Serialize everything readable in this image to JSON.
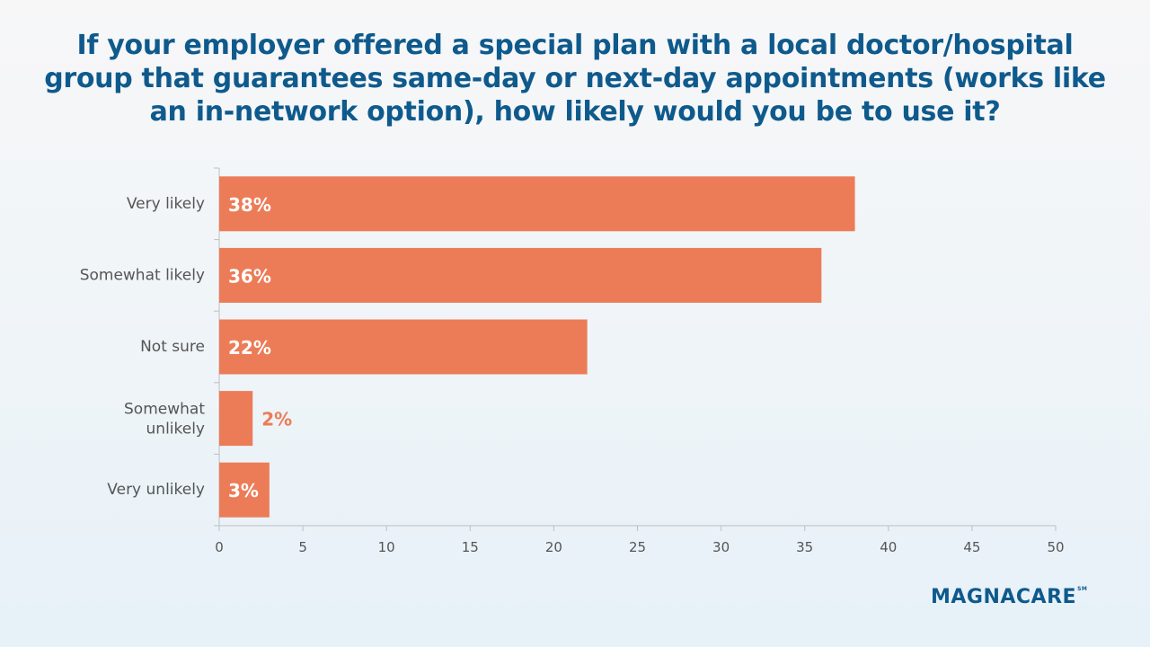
{
  "colors": {
    "bar": "#ec7c57",
    "axis": "#bfbfbf",
    "title": "#0f5a8c"
  },
  "logo": {
    "text": "MAGNACARE",
    "mark": "SM"
  },
  "chart_data": {
    "type": "bar",
    "orientation": "horizontal",
    "title": "If your employer offered a special plan with a local doctor/hospital group that guarantees same-day or next-day appointments (works like an in-network option), how likely would you be to use it?",
    "categories": [
      "Very likely",
      "Somewhat likely",
      "Not sure",
      "Somewhat unlikely",
      "Very unlikely"
    ],
    "values": [
      38,
      36,
      22,
      2,
      3
    ],
    "data_labels": [
      "38%",
      "36%",
      "22%",
      "2%",
      "3%"
    ],
    "xlim": [
      0,
      50
    ],
    "xticks": [
      0,
      5,
      10,
      15,
      20,
      25,
      30,
      35,
      40,
      45,
      50
    ],
    "grid": false,
    "legend": "none"
  }
}
